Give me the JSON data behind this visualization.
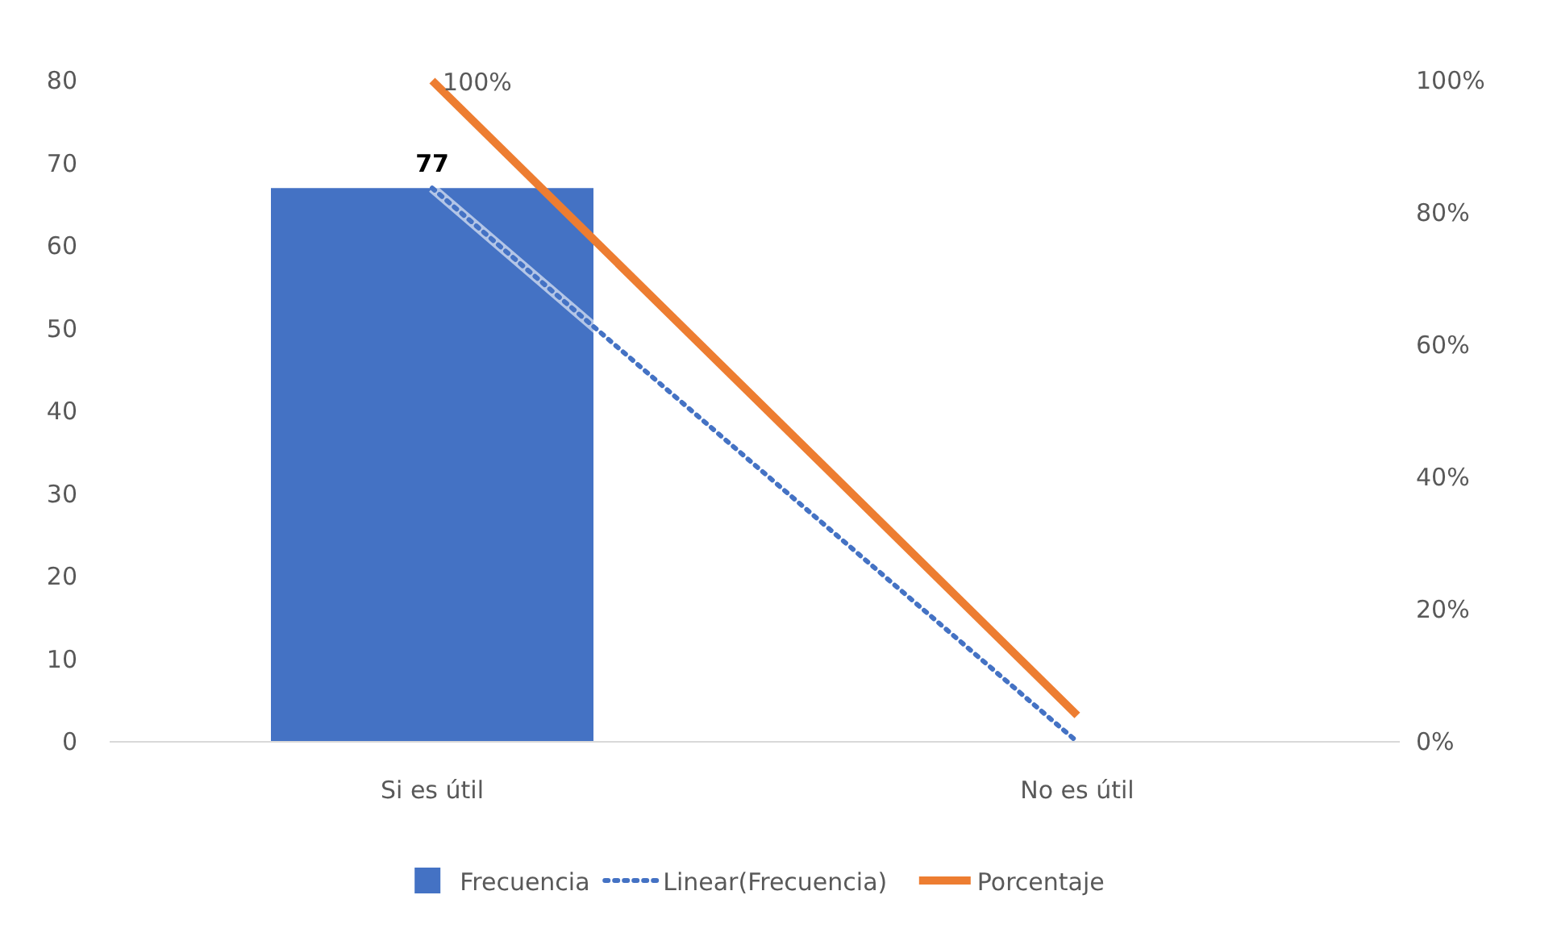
{
  "chart_data": {
    "type": "bar",
    "categories": [
      "Si es útil",
      "No es útil"
    ],
    "series": [
      {
        "name": "Frecuencia",
        "color": "#4472c4",
        "values": [
          67,
          0
        ]
      },
      {
        "name": "Linear(Frecuencia)",
        "type": "line",
        "color": "#4472c4",
        "line_style": "dotted",
        "values": [
          67,
          0
        ]
      },
      {
        "name": "Porcentaje",
        "type": "line",
        "color": "#ed7d31",
        "axis": "y2",
        "values": [
          100,
          4
        ],
        "value_labels": [
          "100%",
          null
        ]
      }
    ],
    "ylim": [
      0,
      80
    ],
    "yticks": [
      0,
      10,
      20,
      30,
      40,
      50,
      60,
      70,
      80
    ],
    "y2lim": [
      0,
      100
    ],
    "y2ticks": [
      {
        "value": 0,
        "label": "0%"
      },
      {
        "value": 20,
        "label": "20%"
      },
      {
        "value": 40,
        "label": "40%"
      },
      {
        "value": 60,
        "label": "60%"
      },
      {
        "value": 80,
        "label": "80%"
      },
      {
        "value": 100,
        "label": "100%"
      }
    ],
    "annotations": [
      {
        "text": "77",
        "x": "Si es útil",
        "y": 67
      }
    ],
    "grid": false,
    "legend": "bottom"
  }
}
